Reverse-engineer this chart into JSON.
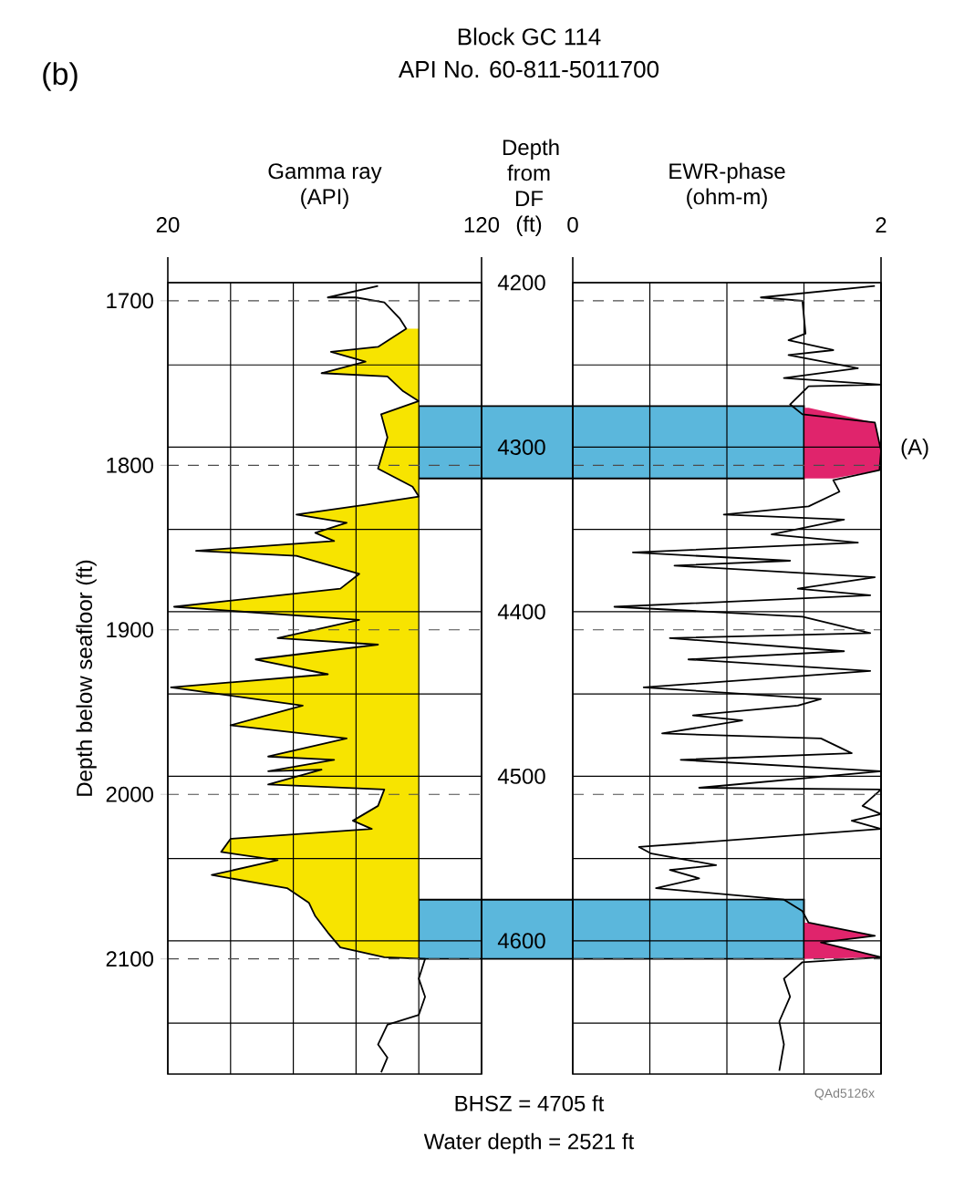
{
  "chart_data": [
    {
      "type": "area",
      "title": "Block GC 114",
      "subtitle": "API No. 60-811-5011700",
      "xlabel": "Gamma ray (API)",
      "ylabel": "Depth below seafloor (ft)",
      "y2label": "Depth from DF (ft)",
      "xlim": [
        20,
        120
      ],
      "xticks": [
        20,
        {
          "value": 40,
          "label": null
        },
        {
          "value": 60,
          "label": null
        },
        {
          "value": 80,
          "label": null
        },
        {
          "value": 100,
          "label": null
        },
        120
      ],
      "ylim": [
        2170,
        1689
      ],
      "yticks": [
        1700,
        1800,
        1900,
        2000,
        2100
      ],
      "y2lim": [
        4681,
        4200
      ],
      "y2ticks": [
        4200,
        {
          "value": 4250,
          "label": null
        },
        4300,
        {
          "value": 4350,
          "label": null
        },
        4400,
        {
          "value": 4450,
          "label": null
        },
        4500,
        {
          "value": 4550,
          "label": null
        },
        4600,
        {
          "value": 4650,
          "label": null
        }
      ],
      "grid": true,
      "bands": [
        {
          "axis": "y",
          "from": 1764,
          "to": 1808,
          "color": "#5bb7dc"
        },
        {
          "axis": "y",
          "from": 2064,
          "to": 2100,
          "color": "#5bb7dc"
        }
      ],
      "series": [
        {
          "type": "area",
          "color": "#f7e400",
          "x": [
            100,
            96,
            87,
            72,
            83,
            69,
            90,
            95,
            100,
            88,
            90,
            87,
            98,
            100,
            83,
            61,
            77,
            67,
            73,
            29,
            61,
            81,
            75,
            22,
            81,
            55,
            87,
            48,
            71,
            21,
            63,
            40,
            77,
            52,
            73,
            52,
            69,
            52,
            89,
            87,
            79,
            85,
            40,
            37,
            55,
            34,
            58,
            65,
            67,
            71,
            75,
            89,
            100
          ],
          "values": [
            1717,
            1717,
            1728,
            1731,
            1737,
            1744,
            1746,
            1755,
            1761,
            1769,
            1783,
            1802,
            1813,
            1819,
            1824,
            1830,
            1835,
            1841,
            1846,
            1852,
            1855,
            1866,
            1875,
            1886,
            1894,
            1905,
            1909,
            1918,
            1927,
            1935,
            1946,
            1958,
            1966,
            1977,
            1979,
            1986,
            1985,
            1994,
            1997,
            2007,
            2016,
            2021,
            2027,
            2035,
            2040,
            2049,
            2057,
            2066,
            2074,
            2084,
            2093,
            2099,
            2100
          ]
        },
        {
          "type": "line",
          "color": "#000000",
          "x": [
            87,
            71,
            80,
            89,
            94,
            96,
            87,
            72,
            83,
            69,
            90,
            95,
            100,
            88,
            90,
            87,
            98,
            100,
            83,
            61,
            77,
            67,
            73,
            29,
            61,
            81,
            75,
            22,
            81,
            55,
            87,
            48,
            71,
            21,
            63,
            40,
            77,
            52,
            73,
            52,
            69,
            52,
            89,
            87,
            79,
            85,
            40,
            37,
            55,
            34,
            58,
            65,
            67,
            71,
            75,
            89,
            102,
            100,
            102,
            100,
            90,
            87,
            90,
            88
          ],
          "values": [
            1691,
            1698,
            1698,
            1701,
            1711,
            1717,
            1728,
            1731,
            1737,
            1744,
            1746,
            1755,
            1761,
            1769,
            1783,
            1802,
            1813,
            1819,
            1824,
            1830,
            1835,
            1841,
            1846,
            1852,
            1855,
            1866,
            1875,
            1886,
            1894,
            1905,
            1909,
            1918,
            1927,
            1935,
            1946,
            1958,
            1966,
            1977,
            1979,
            1986,
            1985,
            1994,
            1997,
            2007,
            2016,
            2021,
            2027,
            2035,
            2040,
            2049,
            2057,
            2066,
            2074,
            2084,
            2093,
            2099,
            2100,
            2112,
            2123,
            2134,
            2140,
            2152,
            2160,
            2169
          ]
        }
      ],
      "annotations": [
        "(b)",
        "BHSZ = 4705 ft",
        "Water depth = 2521 ft"
      ]
    },
    {
      "type": "line",
      "xlabel": "EWR-phase (ohm-m)",
      "tick_labels": "x",
      "xlim": [
        0,
        2
      ],
      "xticks": [
        0,
        {
          "value": 0.5,
          "label": null
        },
        {
          "value": 1,
          "label": null
        },
        {
          "value": 1.5,
          "label": null
        },
        2
      ],
      "ylim": [
        2170,
        1689
      ],
      "yticks": [
        1700,
        1800,
        1900,
        2000,
        2100
      ],
      "y2lim": [
        4681,
        4200
      ],
      "y2ticks": [
        4200,
        {
          "value": 4250,
          "label": null
        },
        4300,
        {
          "value": 4350,
          "label": null
        },
        4400,
        {
          "value": 4450,
          "label": null
        },
        4500,
        {
          "value": 4550,
          "label": null
        },
        4600,
        {
          "value": 4650,
          "label": null
        }
      ],
      "grid": true,
      "bands": [
        {
          "axis": "y",
          "from": 1764,
          "to": 1808,
          "color": "#5bb7dc"
        },
        {
          "axis": "y",
          "from": 2064,
          "to": 2100,
          "color": "#5bb7dc"
        }
      ],
      "series": [
        {
          "type": "area",
          "color": "#e0246c",
          "x": [
            1.5,
            1.53,
            1.96,
            2.0,
            1.99,
            1.69,
            1.5
          ],
          "values": [
            1765,
            1765,
            1774,
            1791,
            1803,
            1808,
            1808
          ]
        },
        {
          "type": "area",
          "color": "#e0246c",
          "x": [
            1.5,
            1.53,
            1.96,
            1.61,
            2.0,
            1.5
          ],
          "values": [
            2078,
            2078,
            2086,
            2090,
            2099,
            2100
          ]
        },
        {
          "color": "#000000",
          "x": [
            1.96,
            1.22,
            1.49,
            1.51,
            1.4,
            1.69,
            1.4,
            1.85,
            1.37,
            2.0,
            1.53,
            1.41,
            1.49,
            1.96,
            2.0,
            1.99,
            1.69,
            1.73,
            1.53,
            0.98,
            1.76,
            1.29,
            1.85,
            0.39,
            1.41,
            0.66,
            1.96,
            1.46,
            1.93,
            0.27,
            1.49,
            1.93,
            0.63,
            1.76,
            0.75,
            1.93,
            0.46,
            1.61,
            1.46,
            0.78,
            1.1,
            0.58,
            1.61,
            1.81,
            0.7,
            2.0,
            0.82,
            2.0,
            1.88,
            2.0,
            1.81,
            2.0,
            0.43,
            0.51,
            0.93,
            0.63,
            0.82,
            0.54,
            1.37,
            1.49,
            1.53,
            1.96,
            1.61,
            2.0,
            1.49,
            1.37,
            1.41,
            1.34,
            1.37,
            1.34
          ],
          "values": [
            1691,
            1698,
            1700,
            1720,
            1724,
            1730,
            1733,
            1741,
            1747,
            1751,
            1752,
            1763,
            1769,
            1774,
            1791,
            1803,
            1809,
            1816,
            1825,
            1830,
            1833,
            1842,
            1847,
            1853,
            1858,
            1861,
            1868,
            1875,
            1879,
            1886,
            1892,
            1902,
            1905,
            1913,
            1918,
            1925,
            1935,
            1942,
            1946,
            1952,
            1955,
            1963,
            1966,
            1975,
            1979,
            1986,
            1996,
            1997,
            2007,
            2012,
            2016,
            2021,
            2032,
            2036,
            2043,
            2046,
            2051,
            2057,
            2064,
            2071,
            2078,
            2086,
            2090,
            2099,
            2102,
            2112,
            2123,
            2138,
            2152,
            2168
          ]
        }
      ],
      "annotations": [
        "QAd5126x",
        {
          "text": "(A)",
          "x": 2,
          "y": 1790
        }
      ]
    }
  ]
}
